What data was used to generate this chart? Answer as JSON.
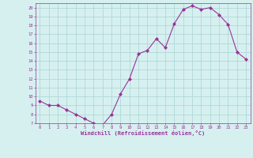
{
  "x": [
    0,
    1,
    2,
    3,
    4,
    5,
    6,
    7,
    8,
    9,
    10,
    11,
    12,
    13,
    14,
    15,
    16,
    17,
    18,
    19,
    20,
    21,
    22,
    23
  ],
  "y": [
    9.5,
    9.0,
    9.0,
    8.5,
    8.0,
    7.5,
    7.0,
    6.8,
    8.0,
    10.3,
    12.0,
    14.8,
    15.2,
    16.5,
    15.5,
    18.2,
    19.8,
    20.2,
    19.8,
    20.0,
    19.2,
    18.1,
    15.0,
    14.2
  ],
  "line_color": "#993399",
  "marker": "D",
  "marker_size": 2,
  "background_color": "#d6f0f0",
  "grid_color": "#b0d8d8",
  "xlabel": "Windchill (Refroidissement éolien,°C)",
  "xlabel_color": "#993399",
  "tick_color": "#993399",
  "ylim": [
    7,
    20.5
  ],
  "xlim": [
    -0.5,
    23.5
  ],
  "yticks": [
    7,
    8,
    9,
    10,
    11,
    12,
    13,
    14,
    15,
    16,
    17,
    18,
    19,
    20
  ],
  "xticks": [
    0,
    1,
    2,
    3,
    4,
    5,
    6,
    7,
    8,
    9,
    10,
    11,
    12,
    13,
    14,
    15,
    16,
    17,
    18,
    19,
    20,
    21,
    22,
    23
  ]
}
